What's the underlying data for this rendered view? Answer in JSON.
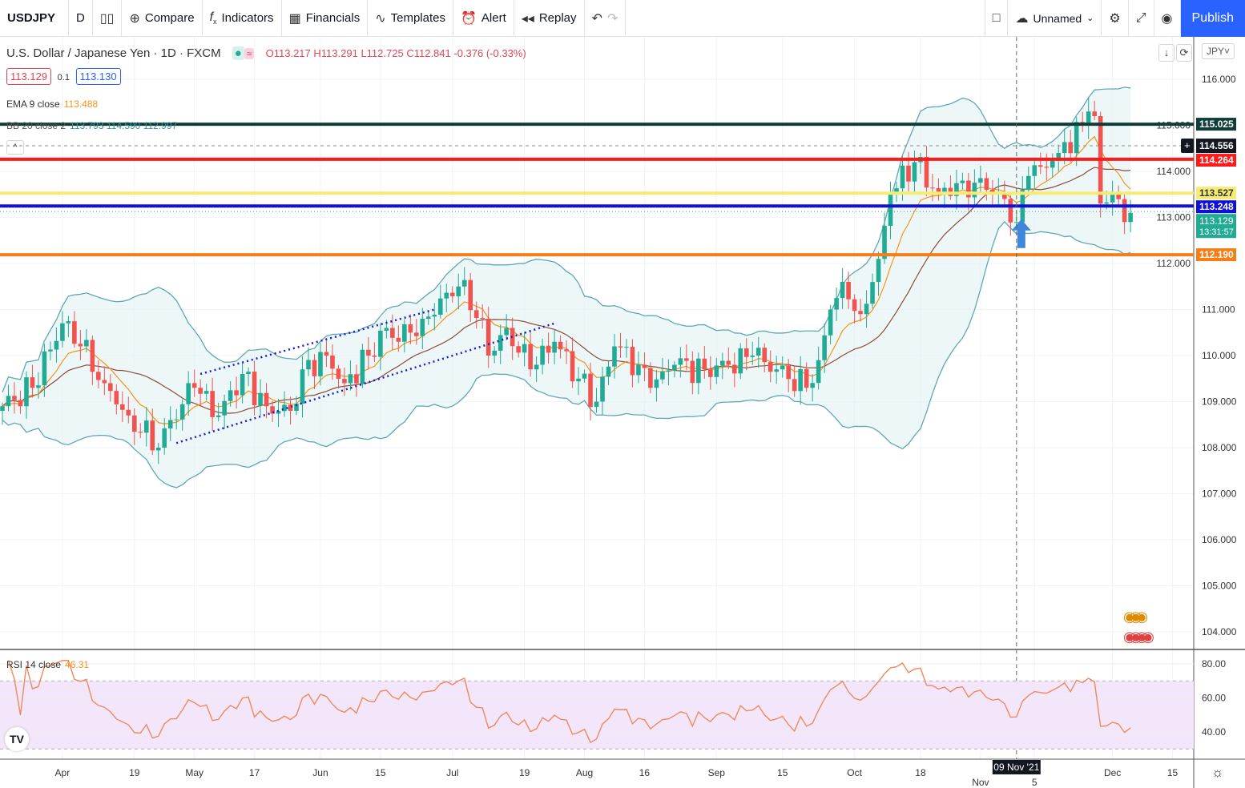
{
  "toolbar": {
    "symbol": "USDJPY",
    "interval": "D",
    "compare": "Compare",
    "indicators": "Indicators",
    "financials": "Financials",
    "templates": "Templates",
    "alert": "Alert",
    "replay": "Replay",
    "layout_name": "Unnamed",
    "publish": "Publish"
  },
  "legend": {
    "title": "U.S. Dollar / Japanese Yen · 1D · FXCM",
    "open": "O113.217",
    "high": "H113.291",
    "low": "L112.725",
    "close": "C112.841",
    "change": "-0.376 (-0.33%)",
    "bid": "113.129",
    "spread": "0.1",
    "ask": "113.130",
    "ema_label": "EMA 9 close",
    "ema_value": "113.488",
    "bb_label": "BB 20 close 2",
    "bb_values": "113.793  114.590  112.997",
    "rsi_label": "RSI 14 close",
    "rsi_value": "46.31"
  },
  "currency": "JPY",
  "crosshair_date": "09 Nov '21",
  "countdown": "13:31:57",
  "colors": {
    "up": "#22ab94",
    "down": "#f05350",
    "ema": "#f7931a",
    "sma": "#8b4a3a",
    "bb": "#5fa8b3",
    "rsi": "#ef8a5a",
    "accent": "#2962ff"
  },
  "chart_data": {
    "type": "candlestick",
    "title": "U.S. Dollar / Japanese Yen · 1D · FXCM",
    "ylim": [
      103.7,
      116.8
    ],
    "price_ticks": [
      "116.000",
      "115.000",
      "114.000",
      "113.000",
      "112.000",
      "111.000",
      "110.000",
      "109.000",
      "108.000",
      "107.000",
      "106.000",
      "105.000",
      "104.000"
    ],
    "price_tick_values": [
      116,
      115,
      114,
      113,
      112,
      111,
      110,
      109,
      108,
      107,
      106,
      105,
      104
    ],
    "time_ticks": [
      {
        "label": "Apr",
        "bar": 10
      },
      {
        "label": "19",
        "bar": 22
      },
      {
        "label": "May",
        "bar": 32
      },
      {
        "label": "17",
        "bar": 42
      },
      {
        "label": "Jun",
        "bar": 53
      },
      {
        "label": "15",
        "bar": 63
      },
      {
        "label": "Jul",
        "bar": 75
      },
      {
        "label": "19",
        "bar": 87
      },
      {
        "label": "Aug",
        "bar": 97
      },
      {
        "label": "16",
        "bar": 107
      },
      {
        "label": "Sep",
        "bar": 119
      },
      {
        "label": "15",
        "bar": 130
      },
      {
        "label": "Oct",
        "bar": 142
      },
      {
        "label": "18",
        "bar": 153
      },
      {
        "label": "Nov",
        "bar": 163
      },
      {
        "label": "5",
        "bar": 172
      },
      {
        "label": "Dec",
        "bar": 185
      },
      {
        "label": "15",
        "bar": 195
      }
    ],
    "close_anchors": [
      [
        0,
        108.9
      ],
      [
        5,
        109.3
      ],
      [
        10,
        110.7
      ],
      [
        13,
        110.2
      ],
      [
        17,
        109.4
      ],
      [
        21,
        108.7
      ],
      [
        26,
        108.0
      ],
      [
        28,
        108.6
      ],
      [
        32,
        109.3
      ],
      [
        36,
        108.7
      ],
      [
        40,
        109.6
      ],
      [
        44,
        108.9
      ],
      [
        48,
        108.8
      ],
      [
        50,
        109.7
      ],
      [
        54,
        110.0
      ],
      [
        57,
        109.4
      ],
      [
        61,
        110.0
      ],
      [
        64,
        110.6
      ],
      [
        66,
        110.3
      ],
      [
        70,
        110.8
      ],
      [
        76,
        111.5
      ],
      [
        80,
        110.8
      ],
      [
        81,
        110.0
      ],
      [
        84,
        110.6
      ],
      [
        88,
        109.7
      ],
      [
        92,
        110.3
      ],
      [
        96,
        109.5
      ],
      [
        99,
        109.0
      ],
      [
        102,
        110.2
      ],
      [
        106,
        109.8
      ],
      [
        108,
        109.3
      ],
      [
        112,
        109.8
      ],
      [
        117,
        109.7
      ],
      [
        121,
        109.8
      ],
      [
        125,
        110.0
      ],
      [
        129,
        109.7
      ],
      [
        134,
        109.3
      ],
      [
        136,
        109.9
      ],
      [
        138,
        111.0
      ],
      [
        140,
        111.6
      ],
      [
        143,
        110.9
      ],
      [
        146,
        112.1
      ],
      [
        148,
        113.5
      ],
      [
        152,
        114.2
      ],
      [
        156,
        113.5
      ],
      [
        160,
        113.8
      ],
      [
        164,
        113.6
      ],
      [
        167,
        113.4
      ],
      [
        169,
        112.9
      ],
      [
        171,
        113.9
      ],
      [
        173,
        114.1
      ],
      [
        176,
        114.4
      ],
      [
        180,
        115.0
      ],
      [
        181,
        115.3
      ],
      [
        182,
        115.2
      ],
      [
        183,
        113.3
      ],
      [
        185,
        113.5
      ],
      [
        187,
        112.9
      ],
      [
        188,
        113.1
      ]
    ],
    "horizontal_levels": [
      {
        "price": 115.025,
        "label": "115.025",
        "color": "#0f3d38",
        "text": "#ffffff"
      },
      {
        "price": 114.264,
        "label": "114.264",
        "color": "#ff1a1a",
        "text": "#ffffff"
      },
      {
        "price": 113.527,
        "label": "113.527",
        "color": "#f7ec72",
        "text": "#333333"
      },
      {
        "price": 113.248,
        "label": "113.248",
        "color": "#1010d8",
        "text": "#ffffff"
      },
      {
        "price": 112.19,
        "label": "112.190",
        "color": "#f57f17",
        "text": "#ffffff"
      }
    ],
    "crosshair_price": {
      "price": 114.556,
      "label": "114.556"
    },
    "last_price": {
      "price": 113.129,
      "label": "113.129"
    },
    "indicators": {
      "ema_period": 9,
      "bb_period": 20,
      "bb_mult": 2,
      "rsi_period": 14
    },
    "rsi": {
      "ylim": [
        25,
        85
      ],
      "ticks": [
        "80.00",
        "60.00",
        "40.00"
      ],
      "tick_values": [
        80,
        60,
        40
      ],
      "band": [
        30,
        70
      ]
    },
    "channel": {
      "upper": [
        [
          33,
          109.6
        ],
        [
          72,
          111.0
        ]
      ],
      "lower": [
        [
          29,
          108.1
        ],
        [
          92,
          110.7
        ]
      ]
    },
    "crosshair_bar": 169
  }
}
